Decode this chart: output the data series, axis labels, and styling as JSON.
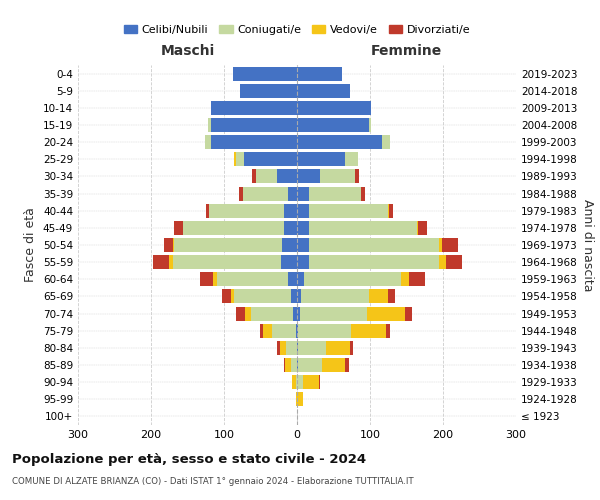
{
  "age_groups": [
    "100+",
    "95-99",
    "90-94",
    "85-89",
    "80-84",
    "75-79",
    "70-74",
    "65-69",
    "60-64",
    "55-59",
    "50-54",
    "45-49",
    "40-44",
    "35-39",
    "30-34",
    "25-29",
    "20-24",
    "15-19",
    "10-14",
    "5-9",
    "0-4"
  ],
  "birth_years": [
    "≤ 1923",
    "1924-1928",
    "1929-1933",
    "1934-1938",
    "1939-1943",
    "1944-1948",
    "1949-1953",
    "1954-1958",
    "1959-1963",
    "1964-1968",
    "1969-1973",
    "1974-1978",
    "1979-1983",
    "1984-1988",
    "1989-1993",
    "1994-1998",
    "1999-2003",
    "2004-2008",
    "2009-2013",
    "2014-2018",
    "2019-2023"
  ],
  "male": {
    "celibi": [
      0,
      0,
      0,
      0,
      0,
      2,
      5,
      8,
      12,
      22,
      20,
      18,
      18,
      12,
      28,
      72,
      118,
      118,
      118,
      78,
      88
    ],
    "coniugati": [
      0,
      0,
      2,
      8,
      15,
      32,
      58,
      78,
      98,
      148,
      148,
      138,
      102,
      62,
      28,
      12,
      8,
      4,
      0,
      0,
      0
    ],
    "vedovi": [
      0,
      2,
      5,
      8,
      8,
      12,
      8,
      5,
      5,
      5,
      2,
      0,
      0,
      0,
      0,
      2,
      0,
      0,
      0,
      0,
      0
    ],
    "divorziati": [
      0,
      0,
      0,
      2,
      5,
      5,
      12,
      12,
      18,
      22,
      12,
      12,
      5,
      5,
      5,
      0,
      0,
      0,
      0,
      0,
      0
    ]
  },
  "female": {
    "nubili": [
      0,
      0,
      0,
      2,
      2,
      2,
      4,
      6,
      10,
      16,
      16,
      16,
      16,
      16,
      32,
      66,
      116,
      98,
      102,
      72,
      62
    ],
    "coniugate": [
      0,
      0,
      8,
      32,
      38,
      72,
      92,
      92,
      132,
      178,
      178,
      148,
      108,
      72,
      48,
      18,
      12,
      4,
      0,
      0,
      0
    ],
    "vedove": [
      0,
      8,
      22,
      32,
      32,
      48,
      52,
      26,
      12,
      10,
      5,
      2,
      2,
      0,
      0,
      0,
      0,
      0,
      0,
      0,
      0
    ],
    "divorziate": [
      0,
      0,
      2,
      5,
      5,
      5,
      10,
      10,
      22,
      22,
      22,
      12,
      5,
      5,
      5,
      0,
      0,
      0,
      0,
      0,
      0
    ]
  },
  "colors": {
    "celibi_nubili": "#4472c4",
    "coniugati": "#c5d9a0",
    "vedovi": "#f5c518",
    "divorziati": "#c0392b"
  },
  "title": "Popolazione per età, sesso e stato civile - 2024",
  "subtitle": "COMUNE DI ALZATE BRIANZA (CO) - Dati ISTAT 1° gennaio 2024 - Elaborazione TUTTITALIA.IT",
  "xlabel_left": "Maschi",
  "xlabel_right": "Femmine",
  "ylabel_left": "Fasce di età",
  "ylabel_right": "Anni di nascita",
  "xlim": 300,
  "bg_color": "#ffffff",
  "grid_color": "#cccccc"
}
